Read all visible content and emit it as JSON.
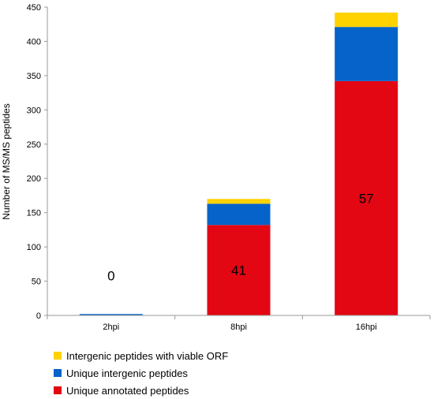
{
  "chart_data": {
    "type": "bar",
    "stacked": true,
    "categories": [
      "2hpi",
      "8hpi",
      "16hpi"
    ],
    "series": [
      {
        "name": "Unique annotated peptides",
        "values": [
          0,
          132,
          342
        ],
        "color": "#e30613"
      },
      {
        "name": "Unique intergenic peptides",
        "values": [
          2,
          31,
          79
        ],
        "color": "#0563c9"
      },
      {
        "name": "Intergenic peptides with viable ORF",
        "values": [
          0,
          7,
          21
        ],
        "color": "#ffd200"
      }
    ],
    "data_labels": [
      "0",
      "41",
      "57"
    ],
    "ylabel": "Number of MS/MS peptides",
    "xlabel": "",
    "ylim": [
      0,
      450
    ],
    "yticks": [
      0,
      50,
      100,
      150,
      200,
      250,
      300,
      350,
      400,
      450
    ],
    "grid": false,
    "legend_position": "bottom",
    "legend_order": [
      "Intergenic peptides with viable ORF",
      "Unique intergenic peptides",
      "Unique annotated peptides"
    ]
  }
}
